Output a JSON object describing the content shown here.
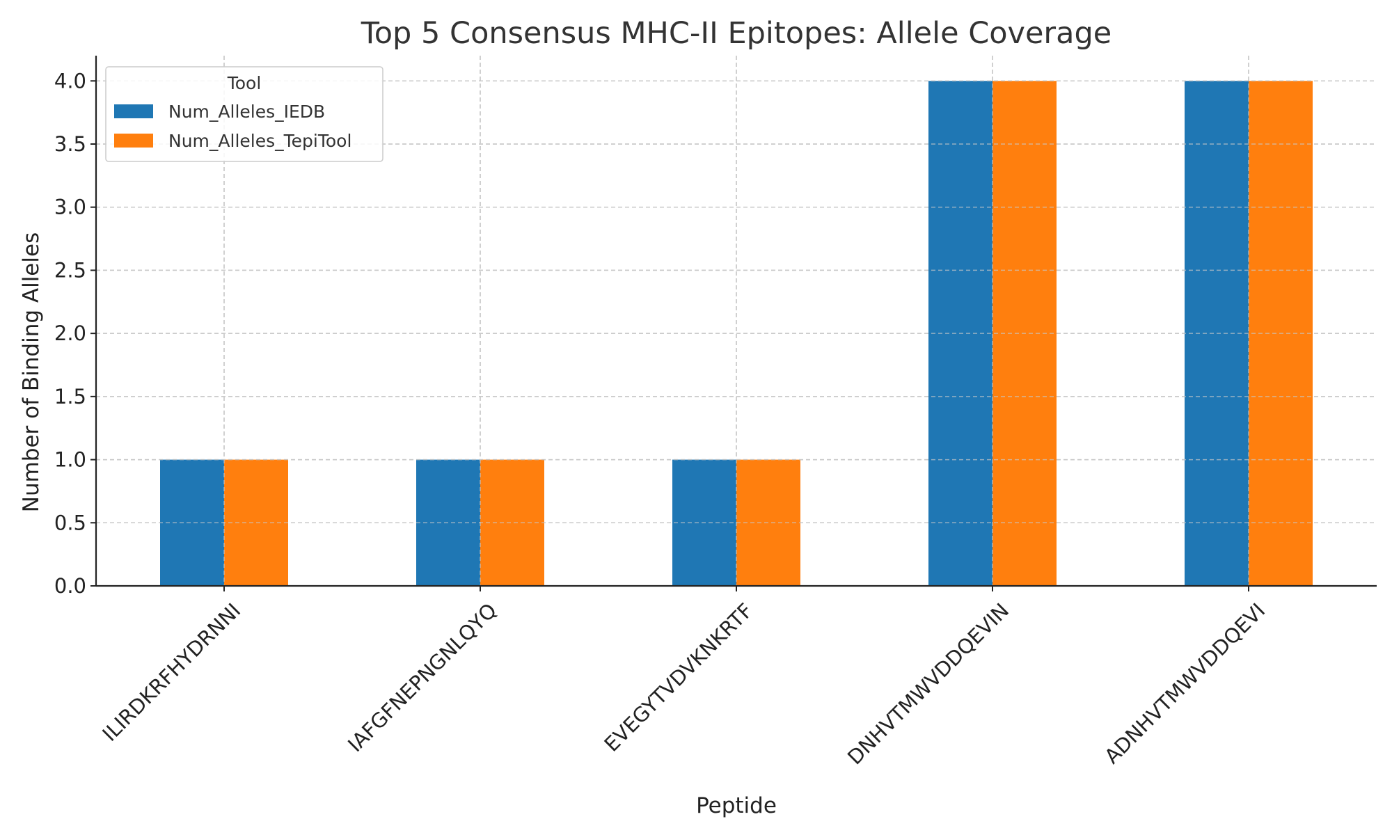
{
  "chart_data": {
    "type": "bar",
    "title": "Top 5 Consensus MHC-II Epitopes: Allele Coverage",
    "xlabel": "Peptide",
    "ylabel": "Number of Binding Alleles",
    "categories": [
      "ILIRDKRFHYDRNNI",
      "IAFGFNEPNGNLQYQ",
      "EVEGYTVDVKNKRTF",
      "DNHVTMWVDDQEVIN",
      "ADNHVTMWVDDQEVI"
    ],
    "series": [
      {
        "name": "Num_Alleles_IEDB",
        "color": "#1f77b4",
        "values": [
          1,
          1,
          1,
          4,
          4
        ]
      },
      {
        "name": "Num_Alleles_TepiTool",
        "color": "#ff7f0e",
        "values": [
          1,
          1,
          1,
          4,
          4
        ]
      }
    ],
    "ylim": [
      0,
      4.2
    ],
    "yticks": [
      "0.0",
      "0.5",
      "1.0",
      "1.5",
      "2.0",
      "2.5",
      "3.0",
      "3.5",
      "4.0"
    ],
    "grid": true,
    "legend": {
      "title": "Tool",
      "placement": "top-left"
    }
  }
}
